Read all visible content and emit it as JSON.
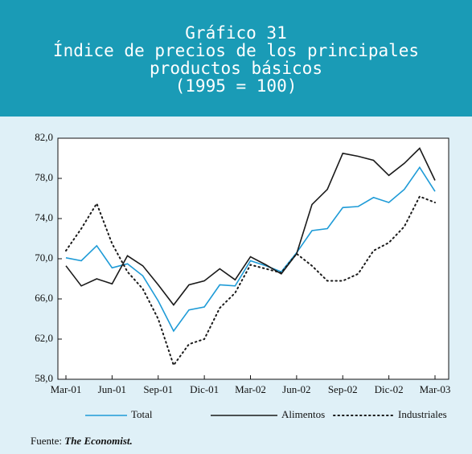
{
  "chart_data": {
    "type": "line",
    "title": "Gráfico 31",
    "subtitle": "Índice de precios de los principales productos básicos",
    "unit_note": "(1995 = 100)",
    "categories": [
      "Mar-01",
      null,
      null,
      "Jun-01",
      null,
      null,
      "Sep-01",
      null,
      null,
      "Dic-01",
      null,
      null,
      "Mar-02",
      null,
      null,
      "Jun-02",
      null,
      null,
      "Sep-02",
      null,
      null,
      "Dic-02",
      null,
      null,
      "Mar-03"
    ],
    "series": [
      {
        "name": "Total",
        "color": "#1e9bd7",
        "style": "solid",
        "values": [
          70.1,
          69.8,
          71.3,
          69.1,
          69.5,
          68.3,
          65.8,
          62.8,
          64.9,
          65.2,
          67.4,
          67.3,
          69.8,
          69.3,
          68.7,
          70.6,
          72.8,
          73.0,
          75.1,
          75.2,
          76.1,
          75.6,
          76.9,
          79.1,
          76.7
        ]
      },
      {
        "name": "Alimentos",
        "color": "#1a1a1a",
        "style": "solid",
        "values": [
          69.3,
          67.3,
          68.0,
          67.5,
          70.3,
          69.3,
          67.4,
          65.4,
          67.4,
          67.8,
          69.0,
          67.9,
          70.2,
          69.4,
          68.5,
          70.5,
          75.4,
          76.9,
          80.5,
          80.2,
          79.8,
          78.3,
          79.5,
          81.0,
          77.8
        ]
      },
      {
        "name": "Industriales",
        "color": "#1a1a1a",
        "style": "dotted",
        "values": [
          70.8,
          73.0,
          75.5,
          71.5,
          68.7,
          67.0,
          64.0,
          59.4,
          61.5,
          62.0,
          65.1,
          66.6,
          69.4,
          69.0,
          68.6,
          70.5,
          69.3,
          67.8,
          67.8,
          68.5,
          70.8,
          71.6,
          73.2,
          76.2,
          75.6
        ]
      }
    ],
    "ylim": [
      58,
      82
    ],
    "yticks": [
      {
        "value": 58,
        "label": "58,0"
      },
      {
        "value": 62,
        "label": "62,0"
      },
      {
        "value": 66,
        "label": "66,0"
      },
      {
        "value": 70,
        "label": "70,0"
      },
      {
        "value": 74,
        "label": "74,0"
      },
      {
        "value": 78,
        "label": "78,0"
      },
      {
        "value": 82,
        "label": "82,0"
      }
    ],
    "grid": false,
    "legend": "bottom",
    "source": {
      "label": "Fuente:",
      "text": "The Economist."
    }
  }
}
